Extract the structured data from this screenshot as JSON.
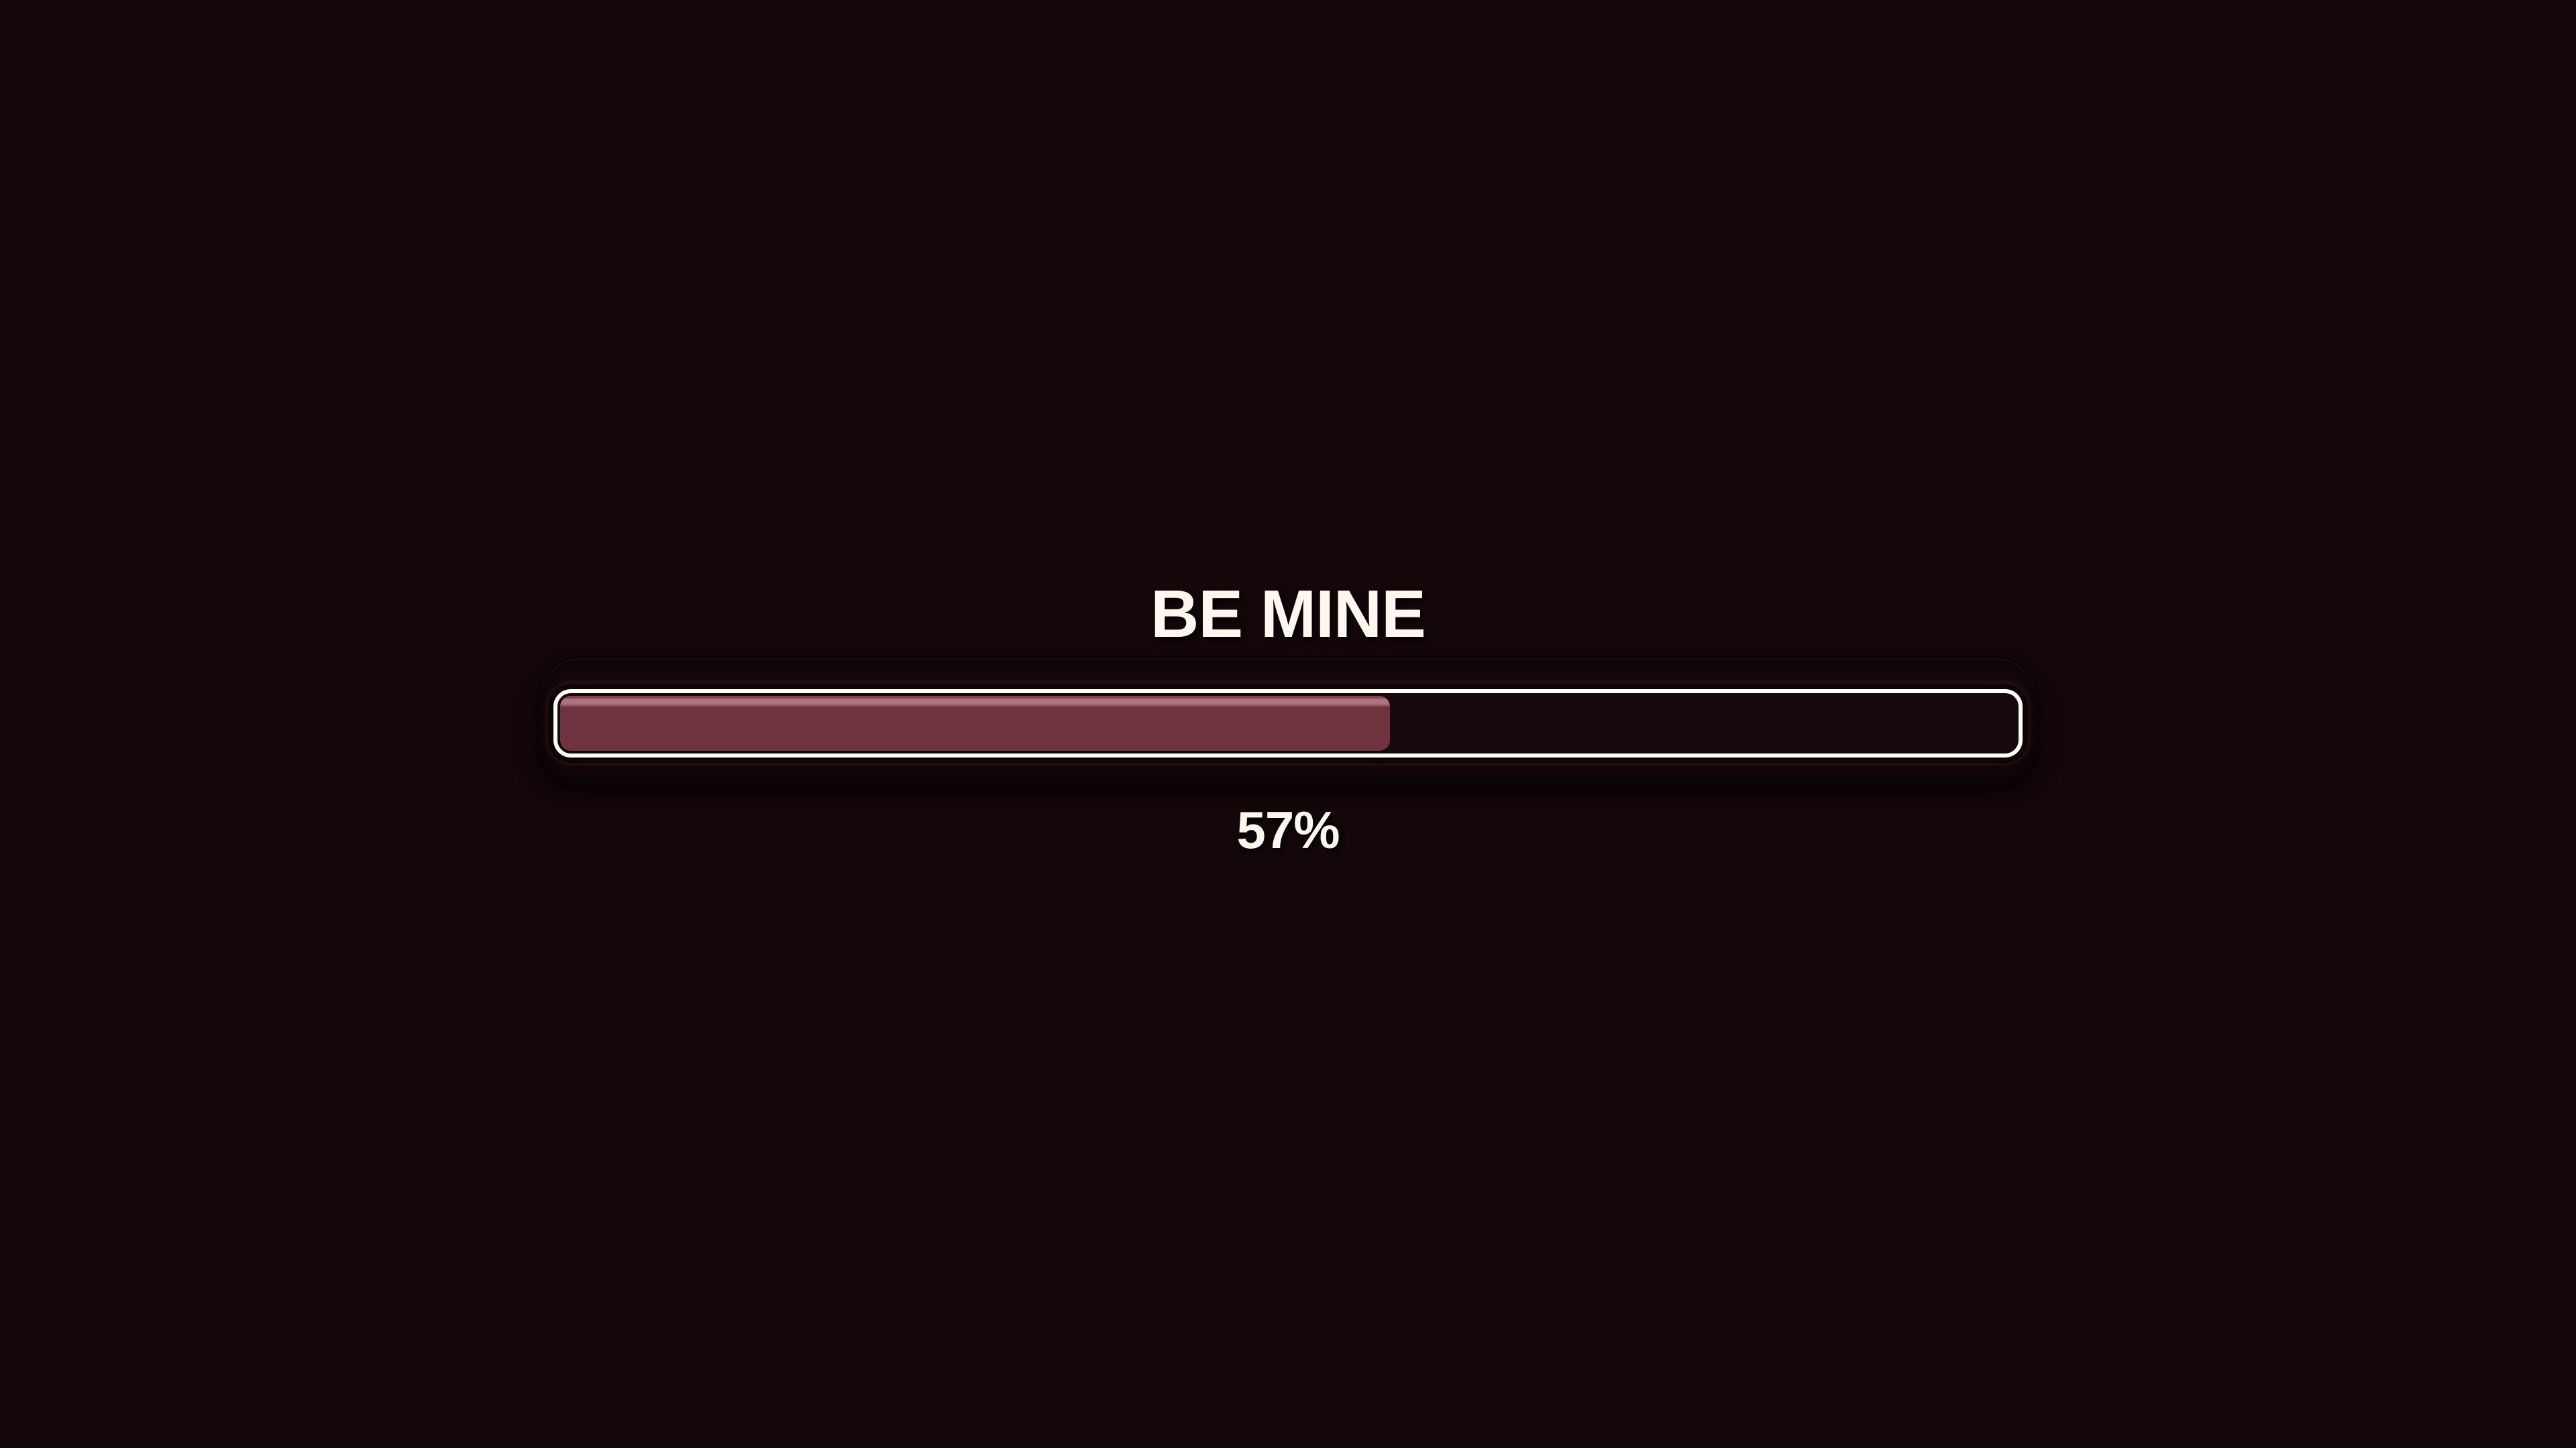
{
  "loader": {
    "title": "BE MINE",
    "percent": 57,
    "percent_label": "57%",
    "colors": {
      "background": "#130709",
      "text": "#fdf7ee",
      "shell_bg": "#170b0e",
      "track_border": "#fffdf4",
      "track_bg": "#160a0e",
      "fill": "#6f3340",
      "fill_top": "#834450",
      "fill_highlight": "#ab737e"
    }
  }
}
